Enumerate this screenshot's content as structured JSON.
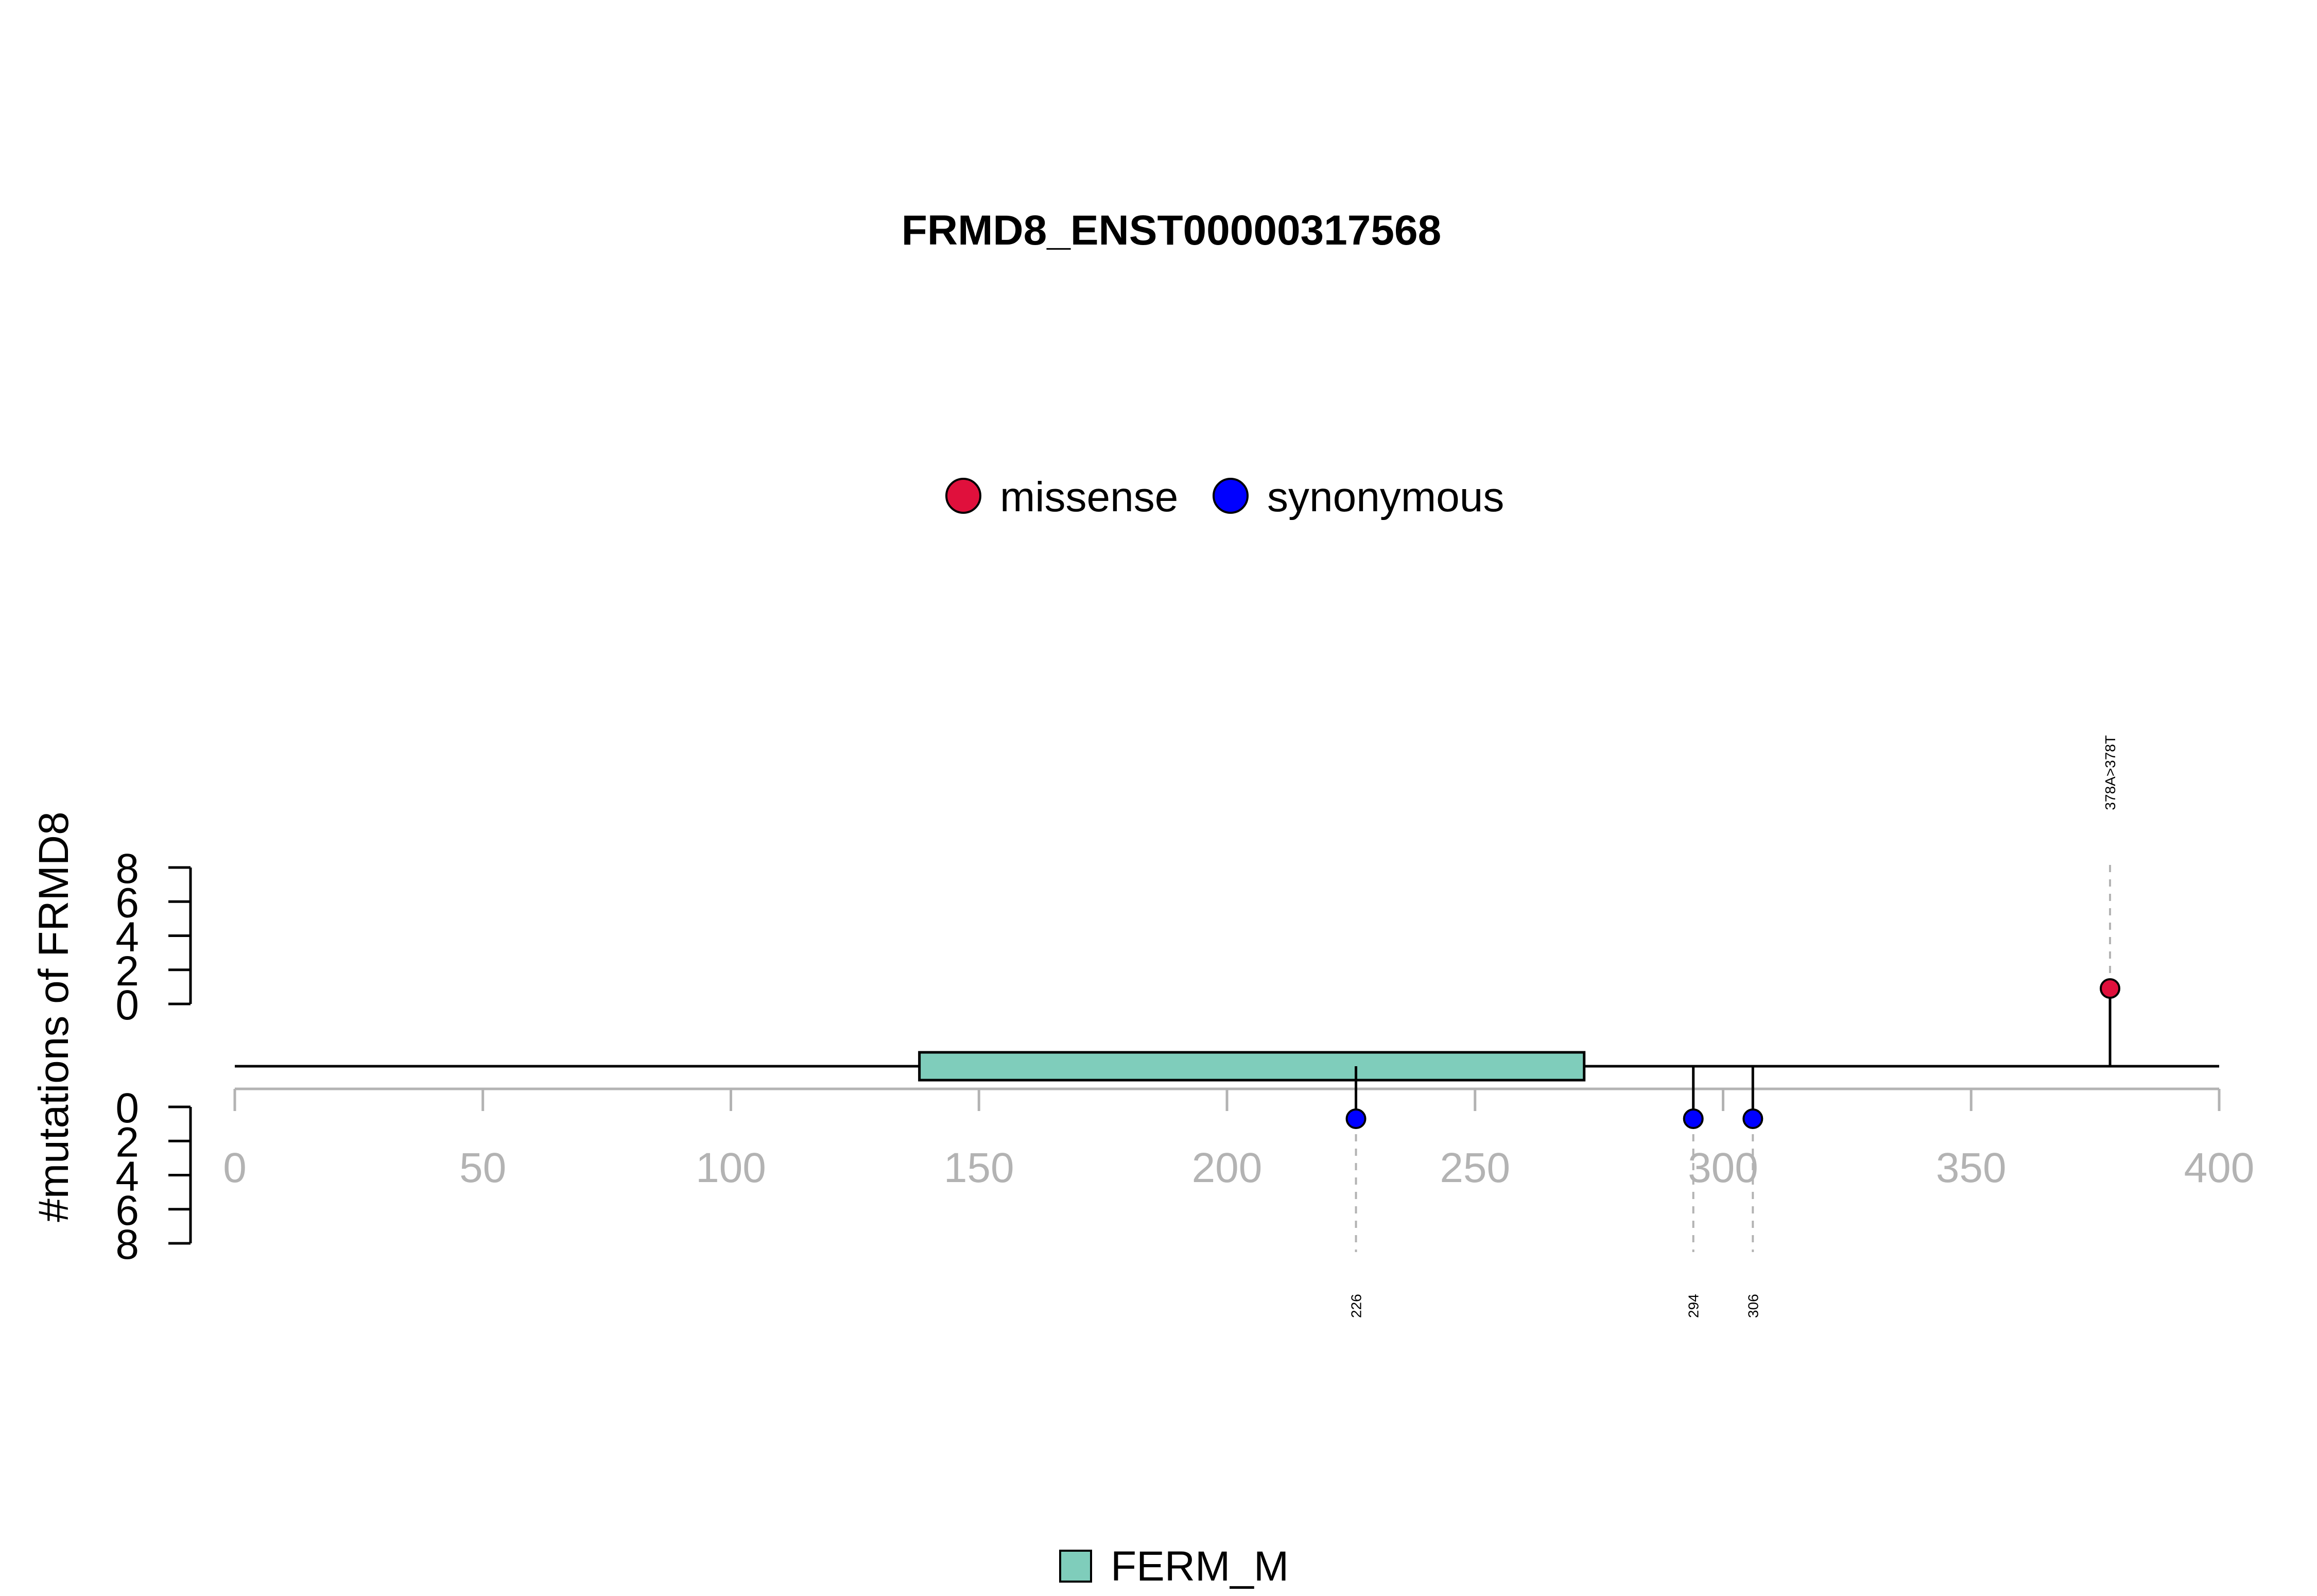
{
  "chart_data": {
    "type": "lollipop",
    "title": "FRMD8_ENST00000317568",
    "ylabel": "#mutations of FRMD8",
    "xlim": [
      0,
      400
    ],
    "x_ticks": [
      0,
      50,
      100,
      150,
      200,
      250,
      300,
      350,
      400
    ],
    "count_ticks_upper": [
      0,
      2,
      4,
      6,
      8
    ],
    "count_ticks_lower": [
      0,
      2,
      4,
      6,
      8
    ],
    "count_ylim": [
      0,
      8
    ],
    "legend": [
      {
        "label": "missense",
        "color": "#e0103c"
      },
      {
        "label": "synonymous",
        "color": "#0000ff"
      }
    ],
    "domains": [
      {
        "name": "FERM_M",
        "start": 138,
        "end": 272,
        "color": "#7fcdbb"
      }
    ],
    "mutations": [
      {
        "position": 378,
        "type": "missense",
        "label": "378A>378T",
        "side": "top"
      },
      {
        "position": 226,
        "type": "synonymous",
        "label": "226",
        "side": "bottom"
      },
      {
        "position": 294,
        "type": "synonymous",
        "label": "294",
        "side": "bottom"
      },
      {
        "position": 306,
        "type": "synonymous",
        "label": "306",
        "side": "bottom"
      }
    ]
  }
}
